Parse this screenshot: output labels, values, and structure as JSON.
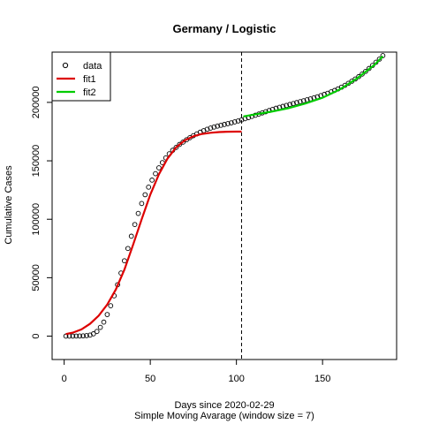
{
  "chart_data": {
    "type": "line",
    "title": "Germany / Logistic",
    "xlabel": "Days since 2020-02-29",
    "xlabel2": "Simple Moving Avarage (window size = 7)",
    "ylabel": "Cumulative Cases",
    "xlim": [
      -7,
      193
    ],
    "ylim": [
      -20000,
      243000
    ],
    "xticks": [
      0,
      50,
      100,
      150
    ],
    "yticks": [
      0,
      50000,
      100000,
      150000,
      200000
    ],
    "grid": false,
    "legend_position": "top-left",
    "vline": {
      "x": 103,
      "style": "dashed"
    },
    "series": [
      {
        "name": "data",
        "kind": "points",
        "color": "#000000",
        "points": [
          [
            1,
            0
          ],
          [
            3,
            20
          ],
          [
            5,
            50
          ],
          [
            7,
            90
          ],
          [
            9,
            150
          ],
          [
            11,
            250
          ],
          [
            13,
            450
          ],
          [
            15,
            900
          ],
          [
            17,
            2000
          ],
          [
            19,
            4000
          ],
          [
            21,
            7500
          ],
          [
            23,
            12000
          ],
          [
            25,
            18500
          ],
          [
            27,
            26000
          ],
          [
            29,
            34500
          ],
          [
            31,
            44000
          ],
          [
            33,
            54000
          ],
          [
            35,
            64500
          ],
          [
            37,
            75000
          ],
          [
            39,
            85500
          ],
          [
            41,
            95500
          ],
          [
            43,
            105000
          ],
          [
            45,
            113500
          ],
          [
            47,
            121000
          ],
          [
            49,
            127500
          ],
          [
            51,
            133500
          ],
          [
            53,
            139000
          ],
          [
            55,
            144000
          ],
          [
            57,
            148500
          ],
          [
            59,
            152500
          ],
          [
            61,
            156000
          ],
          [
            63,
            159000
          ],
          [
            65,
            161500
          ],
          [
            67,
            164000
          ],
          [
            69,
            166000
          ],
          [
            71,
            168000
          ],
          [
            73,
            169800
          ],
          [
            75,
            171500
          ],
          [
            77,
            173000
          ],
          [
            79,
            174500
          ],
          [
            81,
            175800
          ],
          [
            83,
            177000
          ],
          [
            85,
            178000
          ],
          [
            87,
            178900
          ],
          [
            89,
            179700
          ],
          [
            91,
            180400
          ],
          [
            93,
            181100
          ],
          [
            95,
            181800
          ],
          [
            97,
            182500
          ],
          [
            99,
            183300
          ],
          [
            101,
            184100
          ],
          [
            103,
            185000
          ],
          [
            105,
            186000
          ],
          [
            107,
            187000
          ],
          [
            109,
            188000
          ],
          [
            111,
            189000
          ],
          [
            113,
            190000
          ],
          [
            115,
            191000
          ],
          [
            117,
            192000
          ],
          [
            119,
            193000
          ],
          [
            121,
            194000
          ],
          [
            123,
            195000
          ],
          [
            125,
            195800
          ],
          [
            127,
            196600
          ],
          [
            129,
            197400
          ],
          [
            131,
            198200
          ],
          [
            133,
            199000
          ],
          [
            135,
            199800
          ],
          [
            137,
            200600
          ],
          [
            139,
            201400
          ],
          [
            141,
            202200
          ],
          [
            143,
            203000
          ],
          [
            145,
            203900
          ],
          [
            147,
            204800
          ],
          [
            149,
            205800
          ],
          [
            151,
            206800
          ],
          [
            153,
            207800
          ],
          [
            155,
            209000
          ],
          [
            157,
            210200
          ],
          [
            159,
            211500
          ],
          [
            161,
            213000
          ],
          [
            163,
            214600
          ],
          [
            165,
            216300
          ],
          [
            167,
            218100
          ],
          [
            169,
            220000
          ],
          [
            171,
            222000
          ],
          [
            173,
            224200
          ],
          [
            175,
            226500
          ],
          [
            177,
            229000
          ],
          [
            179,
            231600
          ],
          [
            181,
            234300
          ],
          [
            183,
            237000
          ],
          [
            185,
            240000
          ]
        ]
      },
      {
        "name": "fit1",
        "kind": "line",
        "color": "#dd0000",
        "points": [
          [
            1,
            1800
          ],
          [
            5,
            3000
          ],
          [
            10,
            5800
          ],
          [
            15,
            10500
          ],
          [
            20,
            17500
          ],
          [
            25,
            27000
          ],
          [
            30,
            40000
          ],
          [
            35,
            57000
          ],
          [
            40,
            78000
          ],
          [
            45,
            100000
          ],
          [
            50,
            121000
          ],
          [
            55,
            138500
          ],
          [
            60,
            152000
          ],
          [
            65,
            161500
          ],
          [
            70,
            167500
          ],
          [
            75,
            171000
          ],
          [
            80,
            173000
          ],
          [
            85,
            174000
          ],
          [
            90,
            174600
          ],
          [
            95,
            174900
          ],
          [
            100,
            175000
          ],
          [
            103,
            175000
          ]
        ]
      },
      {
        "name": "fit2",
        "kind": "line",
        "color": "#00cc00",
        "points": [
          [
            104,
            188000
          ],
          [
            110,
            189500
          ],
          [
            120,
            192000
          ],
          [
            130,
            195000
          ],
          [
            140,
            199000
          ],
          [
            150,
            204000
          ],
          [
            160,
            211000
          ],
          [
            170,
            220500
          ],
          [
            180,
            232000
          ],
          [
            185,
            239500
          ]
        ]
      }
    ]
  }
}
